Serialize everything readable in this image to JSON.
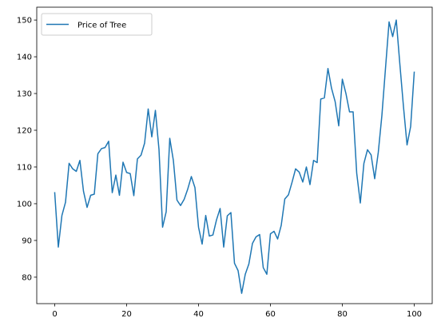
{
  "chart_data": {
    "type": "line",
    "title": "",
    "xlabel": "",
    "ylabel": "",
    "xlim": [
      -5,
      105
    ],
    "ylim": [
      72.8,
      153.5
    ],
    "xticks": [
      0,
      20,
      40,
      60,
      80,
      100
    ],
    "yticks": [
      80,
      90,
      100,
      110,
      120,
      130,
      140,
      150
    ],
    "grid": false,
    "legend_position": "top-left",
    "series": [
      {
        "name": "Price of Tree",
        "color": "#1f77b4",
        "x": [
          0,
          1,
          2,
          3,
          4,
          5,
          6,
          7,
          8,
          9,
          10,
          11,
          12,
          13,
          14,
          15,
          16,
          17,
          18,
          19,
          20,
          21,
          22,
          23,
          24,
          25,
          26,
          27,
          28,
          29,
          30,
          31,
          32,
          33,
          34,
          35,
          36,
          37,
          38,
          39,
          40,
          41,
          42,
          43,
          44,
          45,
          46,
          47,
          48,
          49,
          50,
          51,
          52,
          53,
          54,
          55,
          56,
          57,
          58,
          59,
          60,
          61,
          62,
          63,
          64,
          65,
          66,
          67,
          68,
          69,
          70,
          71,
          72,
          73,
          74,
          75,
          76,
          77,
          78,
          79,
          80,
          81,
          82,
          83,
          84,
          85,
          86,
          87,
          88,
          89,
          90,
          91,
          92,
          93,
          94,
          95,
          96,
          97,
          98,
          99,
          100
        ],
        "values": [
          103,
          88.2,
          96.8,
          100.4,
          111,
          109.5,
          108.8,
          111.8,
          103.4,
          99,
          102.3,
          102.6,
          113.6,
          115,
          115.3,
          117,
          103,
          107.8,
          102.3,
          111.3,
          108.5,
          108.2,
          102.2,
          112.2,
          113.2,
          116.5,
          125.8,
          118.2,
          125.4,
          114.8,
          93.6,
          97.8,
          117.8,
          111.8,
          101,
          99.5,
          101.2,
          104,
          107.4,
          104.4,
          93.6,
          89,
          96.8,
          91.2,
          91.5,
          95.6,
          98.7,
          88.2,
          96.7,
          97.6,
          83.8,
          81.8,
          75.6,
          80.8,
          83.6,
          89.2,
          91,
          91.6,
          82.6,
          80.8,
          91.8,
          92.5,
          90.4,
          94.1,
          101.3,
          102.4,
          105.8,
          109.5,
          108.6,
          105.9,
          110,
          105.2,
          111.8,
          111.2,
          128.5,
          128.8,
          136.8,
          131.4,
          127.8,
          121.2,
          133.9,
          130,
          125,
          125,
          108.3,
          100.2,
          111,
          114.7,
          113.3,
          106.8,
          114,
          124,
          136.8,
          149.5,
          145.5,
          150,
          138,
          126.5,
          116,
          121,
          135.8
        ]
      }
    ]
  }
}
